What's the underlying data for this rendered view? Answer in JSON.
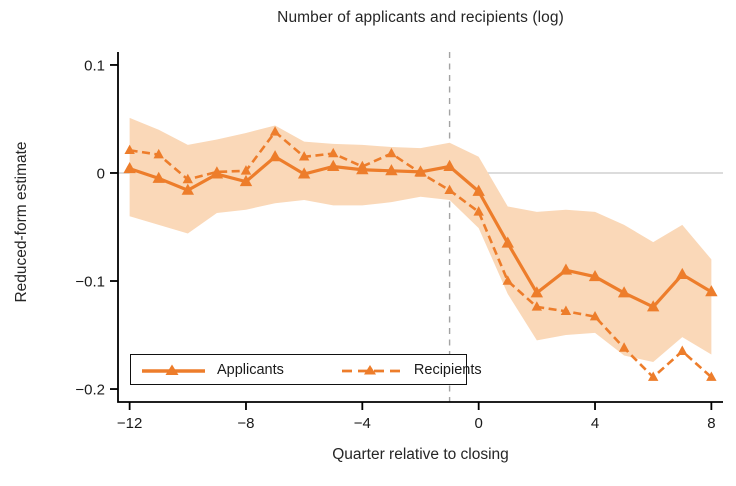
{
  "title": "Number of applicants and recipients (log)",
  "chart_data": {
    "type": "line",
    "title": "Number of applicants and recipients (log)",
    "xlabel": "Quarter relative to closing",
    "ylabel": "Reduced-form estimate",
    "x": [
      -12,
      -11,
      -10,
      -9,
      -8,
      -7,
      -6,
      -5,
      -4,
      -3,
      -2,
      -1,
      0,
      1,
      2,
      3,
      4,
      5,
      6,
      7,
      8
    ],
    "series": [
      {
        "name": "Applicants",
        "style": "solid",
        "values": [
          0.004,
          -0.005,
          -0.016,
          -0.001,
          -0.008,
          0.015,
          -0.001,
          0.006,
          0.003,
          0.002,
          0.001,
          0.006,
          -0.017,
          -0.065,
          -0.111,
          -0.09,
          -0.096,
          -0.111,
          -0.124,
          -0.094,
          -0.11
        ]
      },
      {
        "name": "Recipients",
        "style": "dashed",
        "values": [
          0.021,
          0.017,
          -0.006,
          0.001,
          0.002,
          0.038,
          0.015,
          0.018,
          0.006,
          0.018,
          0.0,
          -0.016,
          -0.036,
          -0.1,
          -0.124,
          -0.128,
          -0.133,
          -0.162,
          -0.189,
          -0.165,
          -0.189
        ]
      }
    ],
    "band": {
      "applies_to": "Applicants",
      "upper": [
        0.051,
        0.04,
        0.026,
        0.031,
        0.037,
        0.044,
        0.029,
        0.027,
        0.026,
        0.024,
        0.023,
        0.028,
        0.015,
        -0.031,
        -0.036,
        -0.034,
        -0.036,
        -0.048,
        -0.064,
        -0.048,
        -0.08
      ],
      "lower": [
        -0.04,
        -0.048,
        -0.056,
        -0.037,
        -0.034,
        -0.028,
        -0.025,
        -0.03,
        -0.03,
        -0.027,
        -0.022,
        -0.025,
        -0.051,
        -0.112,
        -0.155,
        -0.15,
        -0.148,
        -0.169,
        -0.175,
        -0.152,
        -0.168
      ]
    },
    "x_ticks": {
      "values": [
        -12,
        -8,
        -4,
        0,
        4,
        8
      ],
      "labels": [
        "−12",
        "−8",
        "−4",
        "0",
        "4",
        "8"
      ]
    },
    "y_ticks": {
      "values": [
        0.1,
        0,
        -0.1,
        -0.2
      ],
      "labels": [
        "0.1",
        "0",
        "−0.1",
        "−0.2"
      ]
    },
    "xlim": [
      -12.4,
      8.4
    ],
    "ylim": [
      -0.212,
      0.112
    ],
    "reference": {
      "vline_x": -1,
      "hline_y": 0
    },
    "legend": {
      "position": "bottom-left",
      "entries": [
        "Applicants",
        "Recipients"
      ]
    },
    "colors": {
      "line": "#ED7D2B",
      "band": "#FAD8B8",
      "grid": "#c6c6c6",
      "vline": "#a3a3a3",
      "axis": "#000000",
      "text": "#1a1a1a"
    }
  }
}
